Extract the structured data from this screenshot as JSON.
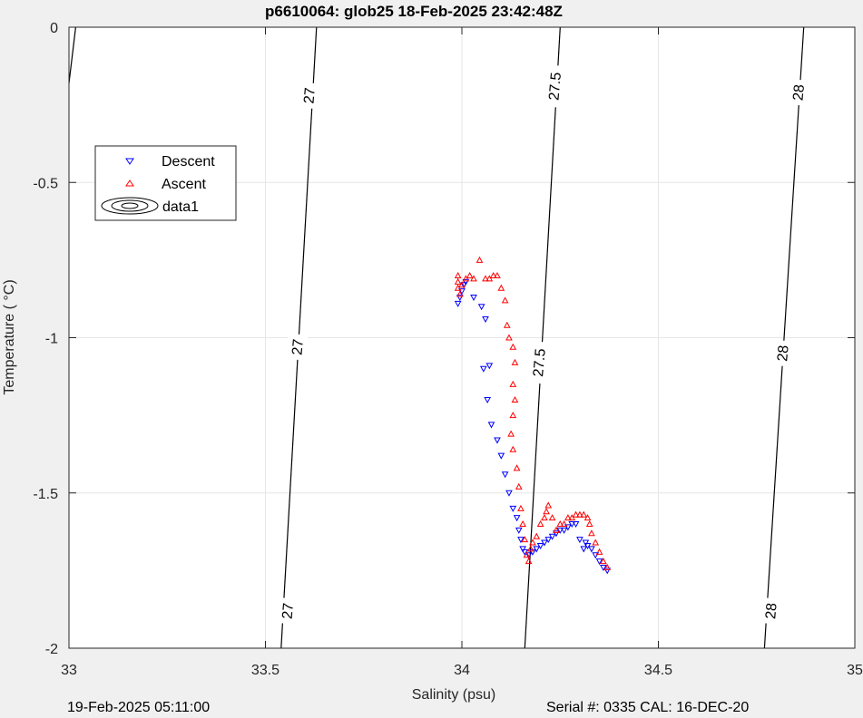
{
  "chart_data": {
    "type": "scatter",
    "title": "p6610064: glob25 18-Feb-2025 23:42:48Z",
    "xlabel": "Salinity (psu)",
    "ylabel": "Temperature (   °C)",
    "xlim": [
      33,
      35
    ],
    "ylim": [
      -2,
      0
    ],
    "xticks": [
      "33",
      "33.5",
      "34",
      "34.5",
      "35"
    ],
    "yticks": [
      "0",
      "-0.5",
      "-1",
      "-1.5",
      "-2"
    ],
    "grid": true,
    "legend_position": "upper-left",
    "legend": [
      "Descent",
      "Ascent",
      "data1"
    ],
    "density_contours": [
      {
        "label": "27",
        "points": [
          [
            33.017,
            0.0
          ],
          [
            33.0,
            -0.18
          ]
        ]
      },
      {
        "label": "27",
        "points": [
          [
            33.63,
            0.0
          ],
          [
            33.54,
            -2.0
          ]
        ]
      },
      {
        "label": "27.5",
        "points": [
          [
            34.25,
            0.0
          ],
          [
            34.16,
            -2.0
          ]
        ]
      },
      {
        "label": "28",
        "points": [
          [
            34.87,
            0.0
          ],
          [
            34.77,
            -2.0
          ]
        ]
      }
    ],
    "contour_labels": [
      {
        "text": "27",
        "s": 33.61,
        "t": -0.22
      },
      {
        "text": "27",
        "s": 33.58,
        "t": -1.03
      },
      {
        "text": "27",
        "s": 33.555,
        "t": -1.88
      },
      {
        "text": "27.5",
        "s": 34.235,
        "t": -0.19
      },
      {
        "text": "27.5",
        "s": 34.195,
        "t": -1.08
      },
      {
        "text": "28",
        "s": 34.855,
        "t": -0.21
      },
      {
        "text": "28",
        "s": 34.815,
        "t": -1.05
      },
      {
        "text": "28",
        "s": 34.785,
        "t": -1.88
      }
    ],
    "series": [
      {
        "name": "Descent",
        "color": "#0000ff",
        "marker": "triangle-down",
        "points": [
          [
            33.99,
            -0.89
          ],
          [
            33.995,
            -0.87
          ],
          [
            34.0,
            -0.85
          ],
          [
            34.005,
            -0.83
          ],
          [
            34.01,
            -0.82
          ],
          [
            34.03,
            -0.87
          ],
          [
            34.05,
            -0.9
          ],
          [
            34.06,
            -0.94
          ],
          [
            34.07,
            -1.09
          ],
          [
            34.055,
            -1.1
          ],
          [
            34.065,
            -1.2
          ],
          [
            34.075,
            -1.28
          ],
          [
            34.09,
            -1.33
          ],
          [
            34.1,
            -1.38
          ],
          [
            34.11,
            -1.44
          ],
          [
            34.12,
            -1.5
          ],
          [
            34.13,
            -1.55
          ],
          [
            34.14,
            -1.58
          ],
          [
            34.145,
            -1.62
          ],
          [
            34.15,
            -1.65
          ],
          [
            34.155,
            -1.68
          ],
          [
            34.16,
            -1.69
          ],
          [
            34.17,
            -1.7
          ],
          [
            34.18,
            -1.69
          ],
          [
            34.19,
            -1.68
          ],
          [
            34.2,
            -1.67
          ],
          [
            34.21,
            -1.66
          ],
          [
            34.22,
            -1.65
          ],
          [
            34.23,
            -1.64
          ],
          [
            34.24,
            -1.63
          ],
          [
            34.25,
            -1.62
          ],
          [
            34.26,
            -1.62
          ],
          [
            34.27,
            -1.61
          ],
          [
            34.28,
            -1.6
          ],
          [
            34.29,
            -1.6
          ],
          [
            34.3,
            -1.65
          ],
          [
            34.31,
            -1.68
          ],
          [
            34.315,
            -1.66
          ],
          [
            34.32,
            -1.67
          ],
          [
            34.33,
            -1.68
          ],
          [
            34.34,
            -1.7
          ],
          [
            34.35,
            -1.72
          ],
          [
            34.36,
            -1.74
          ],
          [
            34.37,
            -1.75
          ]
        ]
      },
      {
        "name": "Ascent",
        "color": "#ff0000",
        "marker": "triangle-up",
        "points": [
          [
            33.99,
            -0.8
          ],
          [
            33.99,
            -0.82
          ],
          [
            33.99,
            -0.84
          ],
          [
            33.995,
            -0.86
          ],
          [
            34.0,
            -0.83
          ],
          [
            34.01,
            -0.81
          ],
          [
            34.02,
            -0.8
          ],
          [
            34.03,
            -0.81
          ],
          [
            34.045,
            -0.75
          ],
          [
            34.06,
            -0.81
          ],
          [
            34.07,
            -0.81
          ],
          [
            34.08,
            -0.8
          ],
          [
            34.09,
            -0.8
          ],
          [
            34.1,
            -0.84
          ],
          [
            34.11,
            -0.88
          ],
          [
            34.115,
            -0.96
          ],
          [
            34.12,
            -1.0
          ],
          [
            34.13,
            -1.03
          ],
          [
            34.135,
            -1.08
          ],
          [
            34.13,
            -1.15
          ],
          [
            34.135,
            -1.2
          ],
          [
            34.13,
            -1.25
          ],
          [
            34.125,
            -1.31
          ],
          [
            34.13,
            -1.36
          ],
          [
            34.14,
            -1.42
          ],
          [
            34.145,
            -1.48
          ],
          [
            34.15,
            -1.55
          ],
          [
            34.155,
            -1.6
          ],
          [
            34.16,
            -1.65
          ],
          [
            34.165,
            -1.7
          ],
          [
            34.17,
            -1.72
          ],
          [
            34.175,
            -1.68
          ],
          [
            34.18,
            -1.66
          ],
          [
            34.19,
            -1.64
          ],
          [
            34.2,
            -1.6
          ],
          [
            34.21,
            -1.58
          ],
          [
            34.215,
            -1.56
          ],
          [
            34.22,
            -1.54
          ],
          [
            34.23,
            -1.58
          ],
          [
            34.24,
            -1.62
          ],
          [
            34.25,
            -1.6
          ],
          [
            34.26,
            -1.6
          ],
          [
            34.27,
            -1.58
          ],
          [
            34.28,
            -1.58
          ],
          [
            34.29,
            -1.57
          ],
          [
            34.3,
            -1.57
          ],
          [
            34.31,
            -1.57
          ],
          [
            34.32,
            -1.58
          ],
          [
            34.325,
            -1.6
          ],
          [
            34.33,
            -1.63
          ],
          [
            34.34,
            -1.66
          ],
          [
            34.35,
            -1.69
          ],
          [
            34.36,
            -1.72
          ],
          [
            34.37,
            -1.74
          ]
        ]
      }
    ]
  },
  "footer": {
    "date": "19-Feb-2025 05:11:00",
    "serial": "Serial #: 0335  CAL: 16-DEC-20"
  }
}
